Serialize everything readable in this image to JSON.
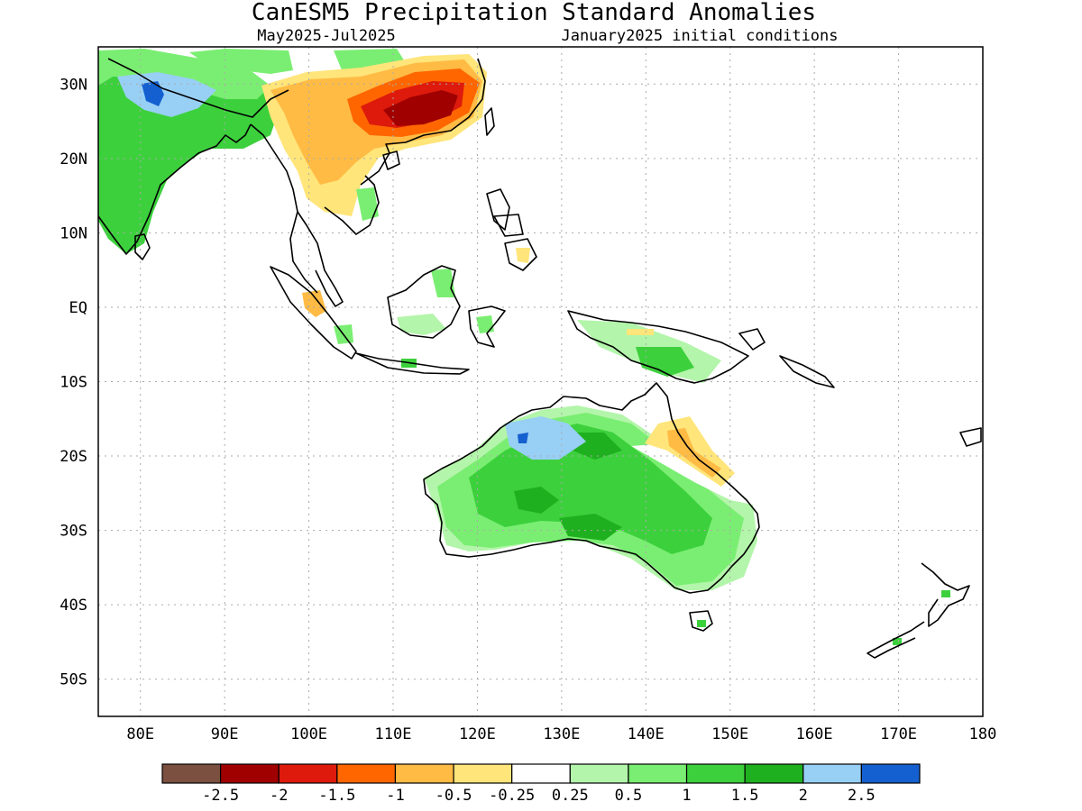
{
  "title": "CanESM5 Precipitation Standard Anomalies",
  "subtitle_left": "May2025-Jul2025",
  "subtitle_right": "January2025 initial conditions",
  "lon_labels": [
    "80E",
    "90E",
    "100E",
    "110E",
    "120E",
    "130E",
    "140E",
    "150E",
    "160E",
    "170E",
    "180"
  ],
  "lat_labels": [
    "30N",
    "20N",
    "10N",
    "EQ",
    "10S",
    "20S",
    "30S",
    "40S",
    "50S"
  ],
  "legend": {
    "colors": [
      "#7b5040",
      "#a00000",
      "#dd1a0c",
      "#ff6600",
      "#ffbb44",
      "#ffe57a",
      "#ffffff",
      "#b3f5aa",
      "#7aee72",
      "#3dd03d",
      "#1fb01f",
      "#98cff5",
      "#1460d0"
    ],
    "ticks": [
      "-2.5",
      "-2",
      "-1.5",
      "-1",
      "-0.5",
      "-0.25",
      "0.25",
      "0.5",
      "1",
      "1.5",
      "2",
      "2.5"
    ]
  },
  "colors": {
    "frame": "#000000",
    "grid": "#aaaaaa",
    "coast": "#000000"
  }
}
